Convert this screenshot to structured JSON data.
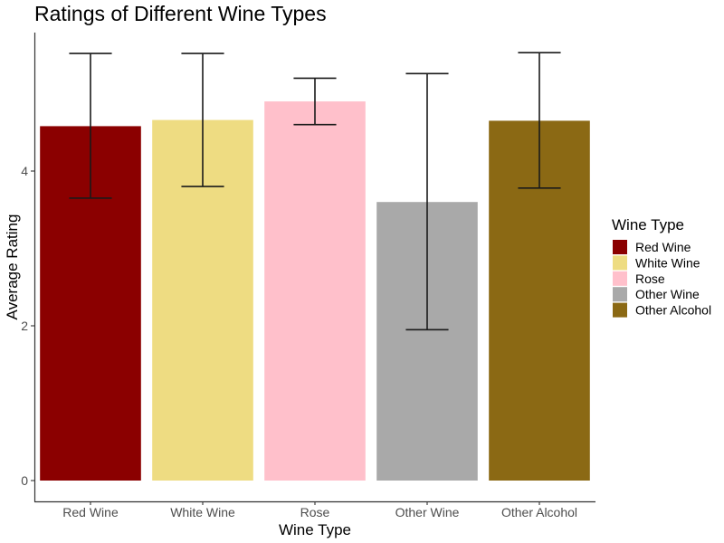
{
  "chart_data": {
    "type": "bar",
    "title": "Ratings of Different Wine Types",
    "xlabel": "Wine Type",
    "ylabel": "Average Rating",
    "categories": [
      "Red Wine",
      "White Wine",
      "Rose",
      "Other Wine",
      "Other Alcohol"
    ],
    "values": [
      4.58,
      4.66,
      4.9,
      3.6,
      4.65
    ],
    "error_low": [
      3.65,
      3.8,
      4.6,
      1.95,
      3.78
    ],
    "error_high": [
      5.52,
      5.52,
      5.2,
      5.26,
      5.53
    ],
    "colors": [
      "#8B0000",
      "#EEDC82",
      "#FFC0CB",
      "#A9A9A9",
      "#8B6914"
    ],
    "ylim": [
      0,
      5.78
    ],
    "yticks": [
      0,
      2,
      4
    ],
    "grid": false,
    "legend": {
      "title": "Wine Type",
      "placement": "right",
      "entries": [
        "Red Wine",
        "White Wine",
        "Rose",
        "Other Wine",
        "Other Alcohol"
      ]
    }
  }
}
